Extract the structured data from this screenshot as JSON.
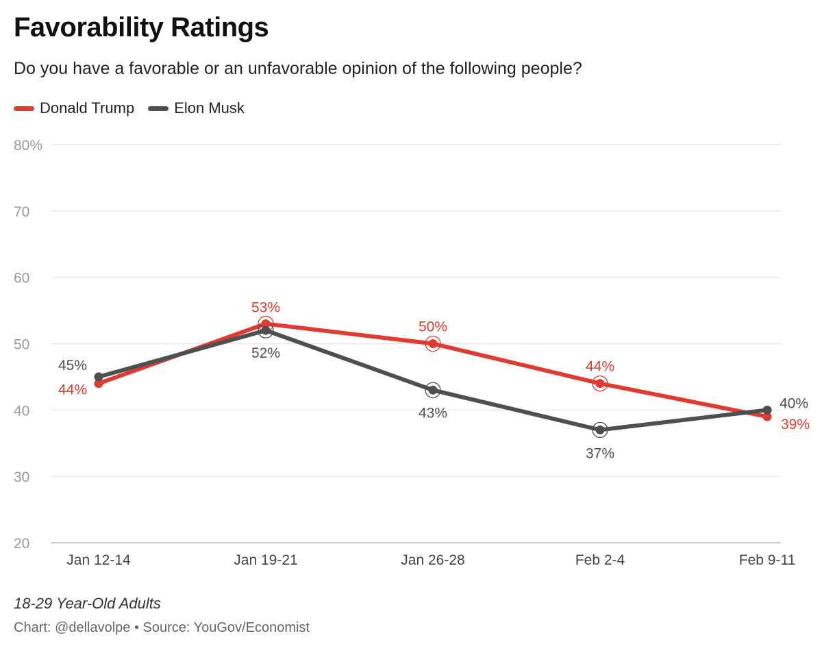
{
  "colors": {
    "trump": "#e03b32",
    "musk": "#4d4f51",
    "grid": "#e3e3e3",
    "axis_text": "#999999"
  },
  "chart_data": {
    "type": "line",
    "title": "Favorability Ratings",
    "subtitle": "Do you have a favorable or an unfavorable opinion of the following people?",
    "categories": [
      "Jan 12-14",
      "Jan 19-21",
      "Jan 26-28",
      "Feb 2-4",
      "Feb 9-11"
    ],
    "y_ticks": [
      "80%",
      "70",
      "60",
      "50",
      "40",
      "30",
      "20"
    ],
    "ylim": [
      20,
      80
    ],
    "grid": true,
    "legend_position": "top-left",
    "series": [
      {
        "name": "Donald Trump",
        "color": "#e03b32",
        "values": [
          44,
          53,
          50,
          44,
          39
        ],
        "labels": [
          "44%",
          "53%",
          "50%",
          "44%",
          "39%"
        ]
      },
      {
        "name": "Elon Musk",
        "color": "#4d4f51",
        "values": [
          45,
          52,
          43,
          37,
          40
        ],
        "labels": [
          "45%",
          "52%",
          "43%",
          "37%",
          "40%"
        ]
      }
    ],
    "note": "18-29 Year-Old Adults",
    "source": "Chart: @dellavolpe • Source: YouGov/Economist"
  }
}
